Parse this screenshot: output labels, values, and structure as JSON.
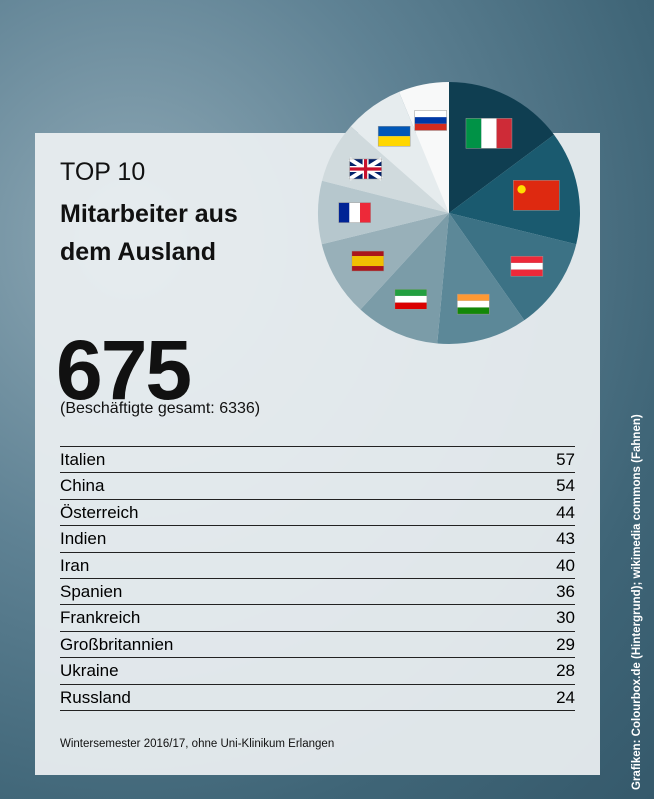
{
  "chart_data": {
    "type": "pie",
    "kicker": "TOP 10",
    "title": "Mitarbeiter aus dem Ausland",
    "total_foreign": 675,
    "total_note": "(Beschäftigte gesamt: 6336)",
    "categories": [
      "Italien",
      "China",
      "Österreich",
      "Indien",
      "Iran",
      "Spanien",
      "Frankreich",
      "Großbritannien",
      "Ukraine",
      "Russland"
    ],
    "values": [
      57,
      54,
      44,
      43,
      40,
      36,
      30,
      29,
      28,
      24
    ],
    "colors": [
      "#0f3e51",
      "#1a5a6f",
      "#3c7285",
      "#5c8898",
      "#7b9ca8",
      "#98b0b9",
      "#b6c7cd",
      "#d0dadd",
      "#e6ecee",
      "#f8f9f9"
    ],
    "footnote": "Wintersemester 2016/17, ohne Uni-Klinikum Erlangen",
    "credit": "Grafiken: Colourbox.de (Hintergrund); wikimedia commons (Fahnen)"
  }
}
